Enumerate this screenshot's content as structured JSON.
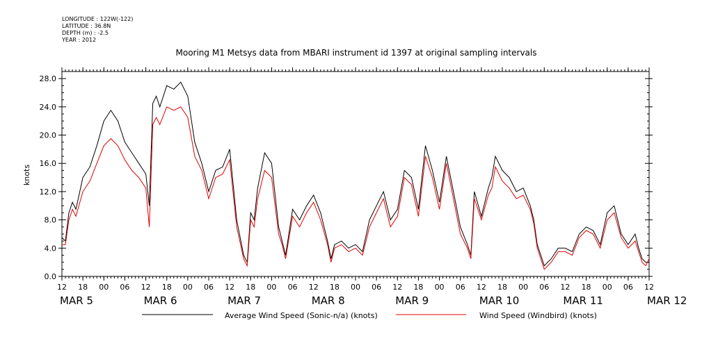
{
  "header": {
    "meta": [
      "LONGITUDE : 122W(-122)",
      "LATITUDE : 36.8N",
      "DEPTH (m) : -2.5",
      "YEAR : 2012"
    ],
    "title": "Mooring M1 Metsys data from MBARI instrument id 1397 at original sampling intervals"
  },
  "chart_data": {
    "type": "line",
    "title": "Mooring M1 Metsys data from MBARI instrument id 1397 at original sampling intervals",
    "xlabel": "",
    "ylabel": "knots",
    "ylim": [
      0,
      29
    ],
    "xlim_hours": [
      0,
      168
    ],
    "y_ticks": [
      "0.0",
      "4.0",
      "8.0",
      "12.0",
      "16.0",
      "20.0",
      "24.0",
      "28.0"
    ],
    "hour_ticks": [
      "12",
      "18",
      "00",
      "06",
      "12",
      "18",
      "00",
      "06",
      "12",
      "18",
      "00",
      "06",
      "12",
      "18",
      "00",
      "06",
      "12",
      "18",
      "00",
      "06",
      "12",
      "18",
      "00",
      "06",
      "12",
      "18",
      "00",
      "06",
      "12"
    ],
    "date_labels": [
      {
        "label": "MAR  5",
        "hour": 0
      },
      {
        "label": "MAR  6",
        "hour": 24
      },
      {
        "label": "MAR  7",
        "hour": 48
      },
      {
        "label": "MAR  8",
        "hour": 72
      },
      {
        "label": "MAR  9",
        "hour": 96
      },
      {
        "label": "MAR 10",
        "hour": 120
      },
      {
        "label": "MAR 11",
        "hour": 144
      },
      {
        "label": "MAR 12",
        "hour": 168
      }
    ],
    "grid": false,
    "legend_position": "bottom",
    "x_units": "hours after 2012-03-05 12:00",
    "series": [
      {
        "name": "Average Wind Speed (Sonic-n/a) (knots)",
        "color": "#000000",
        "x": [
          0,
          1,
          2,
          3,
          4,
          6,
          8,
          10,
          12,
          14,
          16,
          18,
          20,
          22,
          24,
          25,
          26,
          27,
          28,
          30,
          32,
          34,
          36,
          38,
          40,
          42,
          44,
          46,
          48,
          50,
          52,
          53,
          54,
          55,
          56,
          58,
          60,
          62,
          63,
          64,
          66,
          68,
          70,
          72,
          74,
          76,
          77,
          78,
          80,
          82,
          84,
          86,
          88,
          90,
          92,
          94,
          96,
          98,
          100,
          102,
          104,
          106,
          108,
          110,
          112,
          114,
          116,
          117,
          118,
          120,
          122,
          123,
          124,
          126,
          128,
          130,
          132,
          134,
          135,
          136,
          138,
          140,
          142,
          144,
          146,
          148,
          150,
          152,
          154,
          156,
          158,
          160,
          162,
          164,
          165,
          166,
          167,
          168
        ],
        "values": [
          5.5,
          5.0,
          9.0,
          10.5,
          9.5,
          14.0,
          15.5,
          18.5,
          22.0,
          23.5,
          22.0,
          19.0,
          17.5,
          16.0,
          14.5,
          10.0,
          24.5,
          25.5,
          24.0,
          27.0,
          26.5,
          27.5,
          25.5,
          19.0,
          16.0,
          12.0,
          15.0,
          15.5,
          18.0,
          8.0,
          3.0,
          2.0,
          9.0,
          8.0,
          12.5,
          17.5,
          16.0,
          7.0,
          5.0,
          3.0,
          9.5,
          8.0,
          10.0,
          11.5,
          9.0,
          5.0,
          2.5,
          4.5,
          5.0,
          4.0,
          4.5,
          3.5,
          8.0,
          10.0,
          12.0,
          8.0,
          9.5,
          15.0,
          14.0,
          9.5,
          18.5,
          15.0,
          10.5,
          17.0,
          12.0,
          7.0,
          4.5,
          3.0,
          12.0,
          8.5,
          12.5,
          14.0,
          17.0,
          15.0,
          14.0,
          12.0,
          12.5,
          10.0,
          8.0,
          4.5,
          1.5,
          2.5,
          4.0,
          4.0,
          3.5,
          6.0,
          7.0,
          6.5,
          4.5,
          9.0,
          10.0,
          6.0,
          4.5,
          6.0,
          4.0,
          2.5,
          2.0,
          2.0
        ]
      },
      {
        "name": "Wind Speed (Windbird) (knots)",
        "color": "#e00000",
        "x": [
          0,
          1,
          2,
          3,
          4,
          6,
          8,
          10,
          12,
          14,
          16,
          18,
          20,
          22,
          24,
          25,
          26,
          27,
          28,
          30,
          32,
          34,
          36,
          38,
          40,
          42,
          44,
          46,
          48,
          50,
          52,
          53,
          54,
          55,
          56,
          58,
          60,
          62,
          63,
          64,
          66,
          68,
          70,
          72,
          74,
          76,
          77,
          78,
          80,
          82,
          84,
          86,
          88,
          90,
          92,
          94,
          96,
          98,
          100,
          102,
          104,
          106,
          108,
          110,
          112,
          114,
          116,
          117,
          118,
          120,
          122,
          123,
          124,
          126,
          128,
          130,
          132,
          134,
          135,
          136,
          138,
          140,
          142,
          144,
          146,
          148,
          150,
          152,
          154,
          156,
          158,
          160,
          162,
          164,
          165,
          166,
          167,
          168
        ],
        "values": [
          4.5,
          4.5,
          8.0,
          9.5,
          8.5,
          12.0,
          13.5,
          16.0,
          18.5,
          19.5,
          18.5,
          16.5,
          15.0,
          14.0,
          12.5,
          7.0,
          21.5,
          22.5,
          21.5,
          24.0,
          23.5,
          24.0,
          22.5,
          17.0,
          15.0,
          11.0,
          14.0,
          14.5,
          16.5,
          7.0,
          2.5,
          1.5,
          8.0,
          7.0,
          11.0,
          15.0,
          14.0,
          6.0,
          4.5,
          2.5,
          8.5,
          7.0,
          9.0,
          10.5,
          8.0,
          4.5,
          2.0,
          4.0,
          4.5,
          3.5,
          4.0,
          3.0,
          7.0,
          9.0,
          11.0,
          7.0,
          8.5,
          14.0,
          13.0,
          8.5,
          17.0,
          14.0,
          9.5,
          16.0,
          11.0,
          6.0,
          4.0,
          2.5,
          11.0,
          8.0,
          11.5,
          12.5,
          15.5,
          13.5,
          12.5,
          11.0,
          11.5,
          9.5,
          7.5,
          4.0,
          1.0,
          2.0,
          3.5,
          3.5,
          3.0,
          5.5,
          6.5,
          6.0,
          4.0,
          8.0,
          9.0,
          5.5,
          4.0,
          5.0,
          3.5,
          2.0,
          1.5,
          2.5
        ]
      }
    ]
  }
}
